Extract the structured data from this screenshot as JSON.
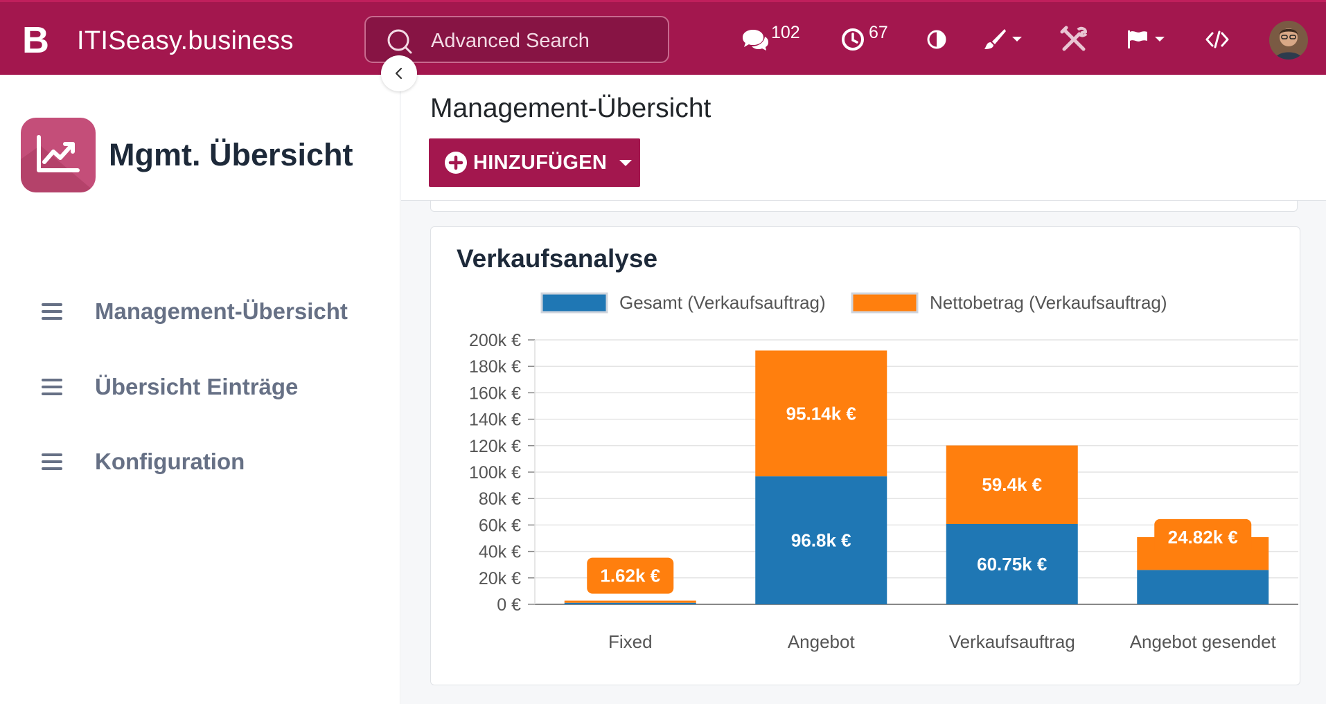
{
  "topbar": {
    "brand_letter": "B",
    "brand_name": "ITISeasy.business",
    "search_placeholder": "Advanced Search",
    "messages_count": "102",
    "activities_count": "67",
    "icons": [
      "chat-icon",
      "clock-icon",
      "contrast-icon",
      "brush-icon",
      "tools-icon",
      "flag-icon",
      "code-icon"
    ],
    "color": "#a3174e"
  },
  "sidebar": {
    "app_title": "Mgmt. Übersicht",
    "items": [
      {
        "label": "Management-Übersicht"
      },
      {
        "label": "Übersicht Einträge"
      },
      {
        "label": "Konfiguration"
      }
    ]
  },
  "main": {
    "page_title": "Management-Übersicht",
    "add_button_label": "HINZUFÜGEN"
  },
  "chart_data": {
    "type": "bar",
    "stacked": true,
    "title": "Verkaufsanalyse",
    "categories": [
      "Fixed",
      "Angebot",
      "Verkaufsauftrag",
      "Angebot gesendet"
    ],
    "series": [
      {
        "name": "Gesamt (Verkaufsauftrag)",
        "color": "#1f77b4",
        "values": [
          1.2,
          96.8,
          60.75,
          26
        ],
        "labels": [
          "",
          "96.8k €",
          "60.75k €",
          ""
        ]
      },
      {
        "name": "Nettobetrag (Verkaufsauftrag)",
        "color": "#ff7f0e",
        "values": [
          1.62,
          95.14,
          59.4,
          24.82
        ],
        "labels": [
          "1.62k €",
          "95.14k €",
          "59.4k €",
          "24.82k €"
        ]
      }
    ],
    "y_ticks": [
      "0 €",
      "20k €",
      "40k €",
      "60k €",
      "80k €",
      "100k €",
      "120k €",
      "140k €",
      "160k €",
      "180k €",
      "200k €"
    ],
    "ylim": [
      0,
      200
    ],
    "grid": true,
    "legend_position": "top"
  }
}
